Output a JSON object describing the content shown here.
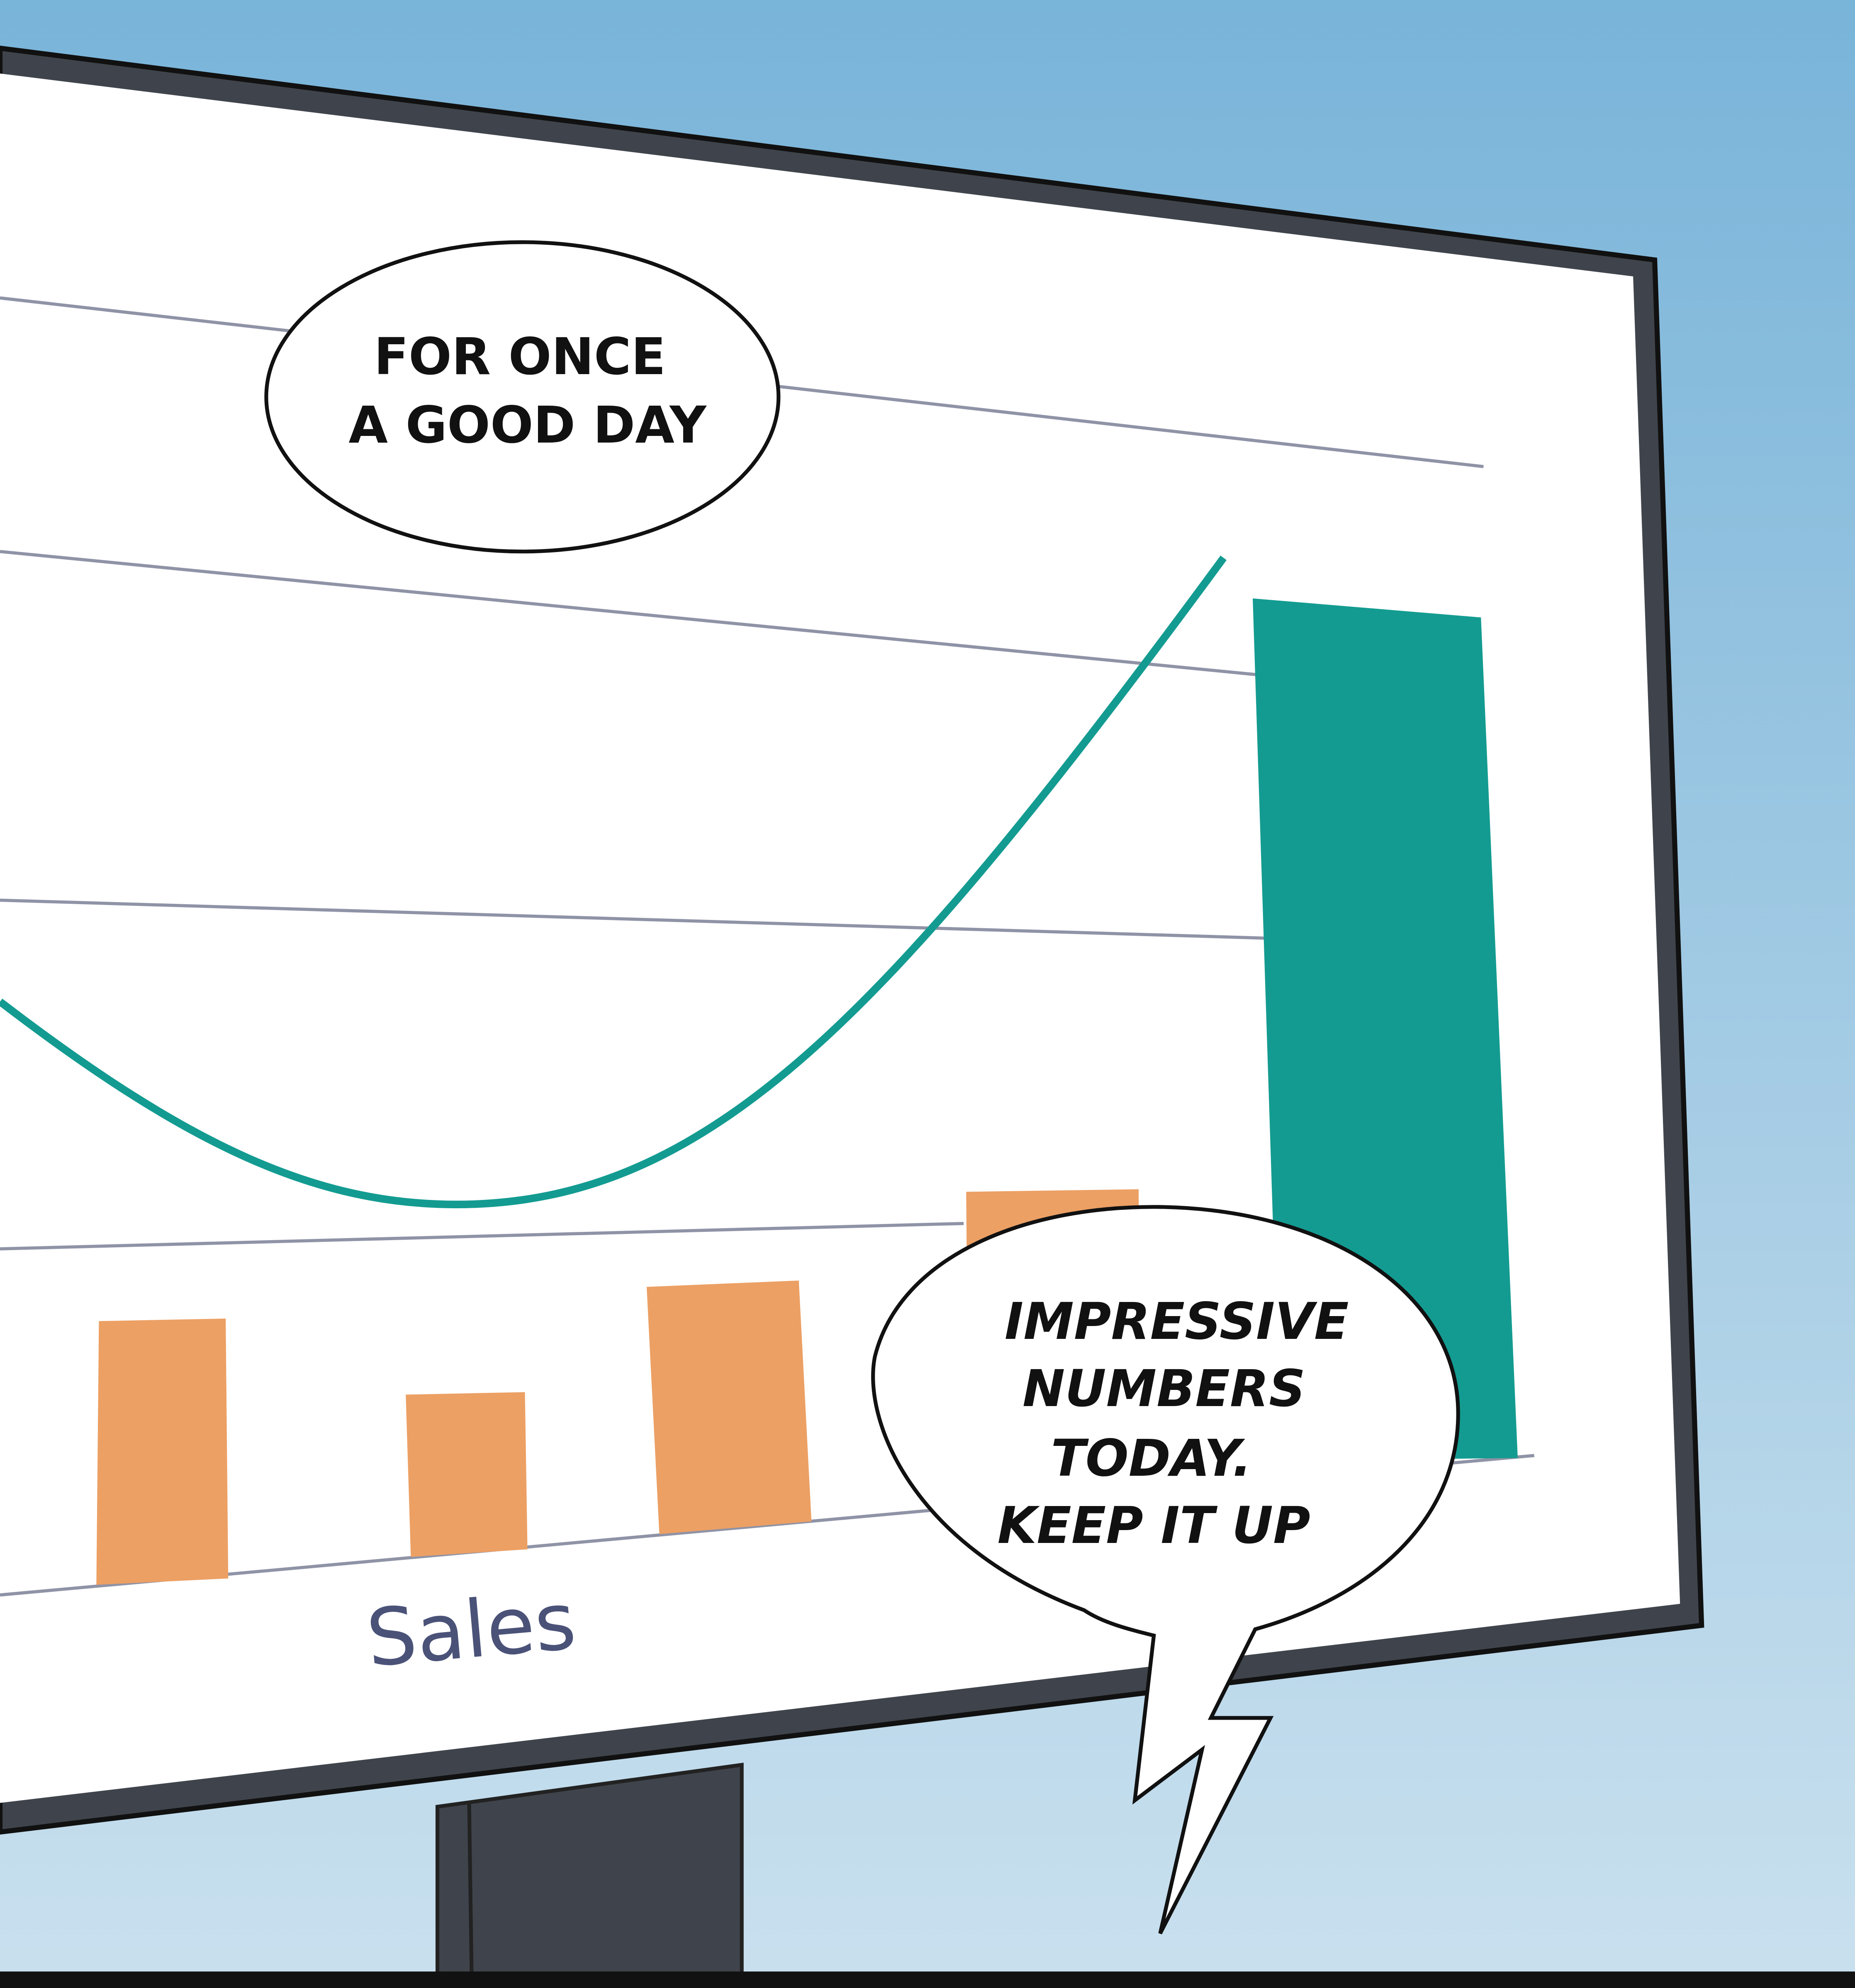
{
  "top_bubble": {
    "lines": [
      "FOR ONCE",
      "A GOOD DAY"
    ]
  },
  "bottom_bubble": {
    "lines": [
      "IMPRESSIVE",
      "NUMBERS",
      "TODAY.",
      "KEEP IT UP"
    ]
  },
  "chart_label": "Sales"
}
